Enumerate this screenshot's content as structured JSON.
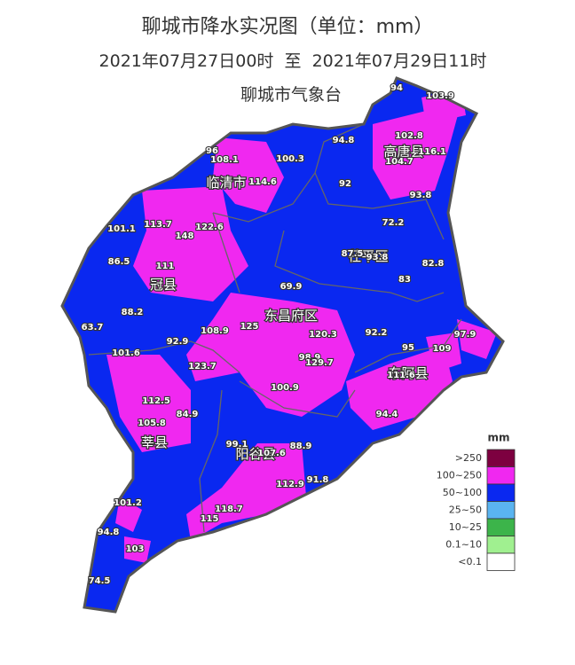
{
  "title": "聊城市降水实况图（单位：mm）",
  "subtitle": "2021年07月27日00时  至  2021年07月29日11时",
  "source": "聊城市气象台",
  "regions": [
    "高唐县",
    "临清市",
    "冠县",
    "茌平区",
    "东昌府区",
    "东阿县",
    "莘县",
    "阳谷县"
  ],
  "stations": [
    94,
    103.9,
    94.8,
    102.8,
    116.1,
    104.7,
    96,
    108.1,
    100.3,
    114.6,
    92,
    93.8,
    101.1,
    113.7,
    148,
    122.6,
    72.2,
    87.5,
    93.8,
    82.8,
    86.5,
    111,
    83,
    69.9,
    88.2,
    63.7,
    125,
    120.3,
    108.9,
    92.2,
    97.9,
    92.9,
    95,
    109,
    101.6,
    98.9,
    129.7,
    123.7,
    111.6,
    100.9,
    112.5,
    94.4,
    105.8,
    84.9,
    99.1,
    107.6,
    88.9,
    112.9,
    91.8,
    101.2,
    118.7,
    115,
    94.8,
    103,
    74.5
  ],
  "legend": {
    "title": "mm",
    "items": [
      {
        "label": ">250",
        "color": "#7d0040"
      },
      {
        "label": "100~250",
        "color": "#f028f0"
      },
      {
        "label": "50~100",
        "color": "#0a28f0"
      },
      {
        "label": "25~50",
        "color": "#5ab4f0"
      },
      {
        "label": "10~25",
        "color": "#3cb44a"
      },
      {
        "label": "0.1~10",
        "color": "#a0f090"
      },
      {
        "label": "<0.1",
        "color": "#ffffff"
      }
    ]
  }
}
